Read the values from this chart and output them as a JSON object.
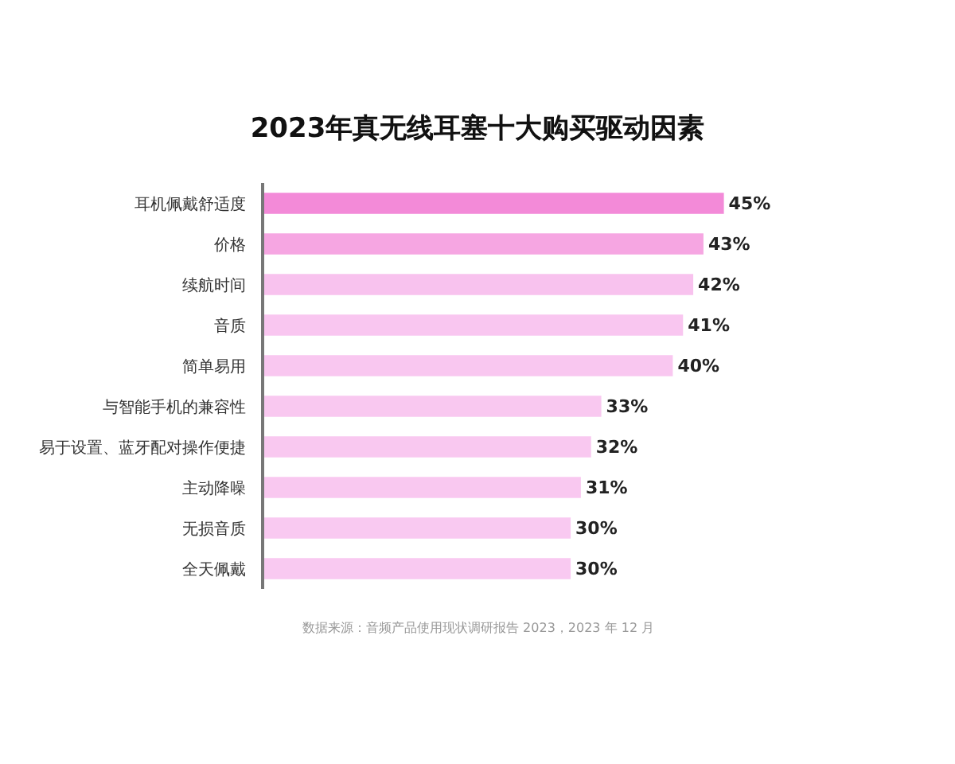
{
  "chart_data": {
    "type": "bar",
    "orientation": "horizontal",
    "title": "2023年真无线耳塞十大购买驱动因素",
    "categories": [
      "耳机佩戴舒适度",
      "价格",
      "续航时间",
      "音质",
      "简单易用",
      "与智能手机的兼容性",
      "易于设置、蓝牙配对操作便捷",
      "主动降噪",
      "无损音质",
      "全天佩戴"
    ],
    "values": [
      45,
      43,
      42,
      41,
      40,
      33,
      32,
      31,
      30,
      30
    ],
    "value_labels": [
      "45%",
      "43%",
      "42%",
      "41%",
      "40%",
      "33%",
      "32%",
      "31%",
      "30%",
      "30%"
    ],
    "colors": [
      "#f38ad8",
      "#f6a6e2",
      "#f8c2ee",
      "#f9c6f0",
      "#f9c7f0",
      "#f9c8f0",
      "#f9c8f0",
      "#f9c8f0",
      "#f9c9f1",
      "#f9c9f1"
    ],
    "annotations": [
      "数据来源：音频产品使用现状调研报告 2023，2023 年 12 月"
    ]
  }
}
